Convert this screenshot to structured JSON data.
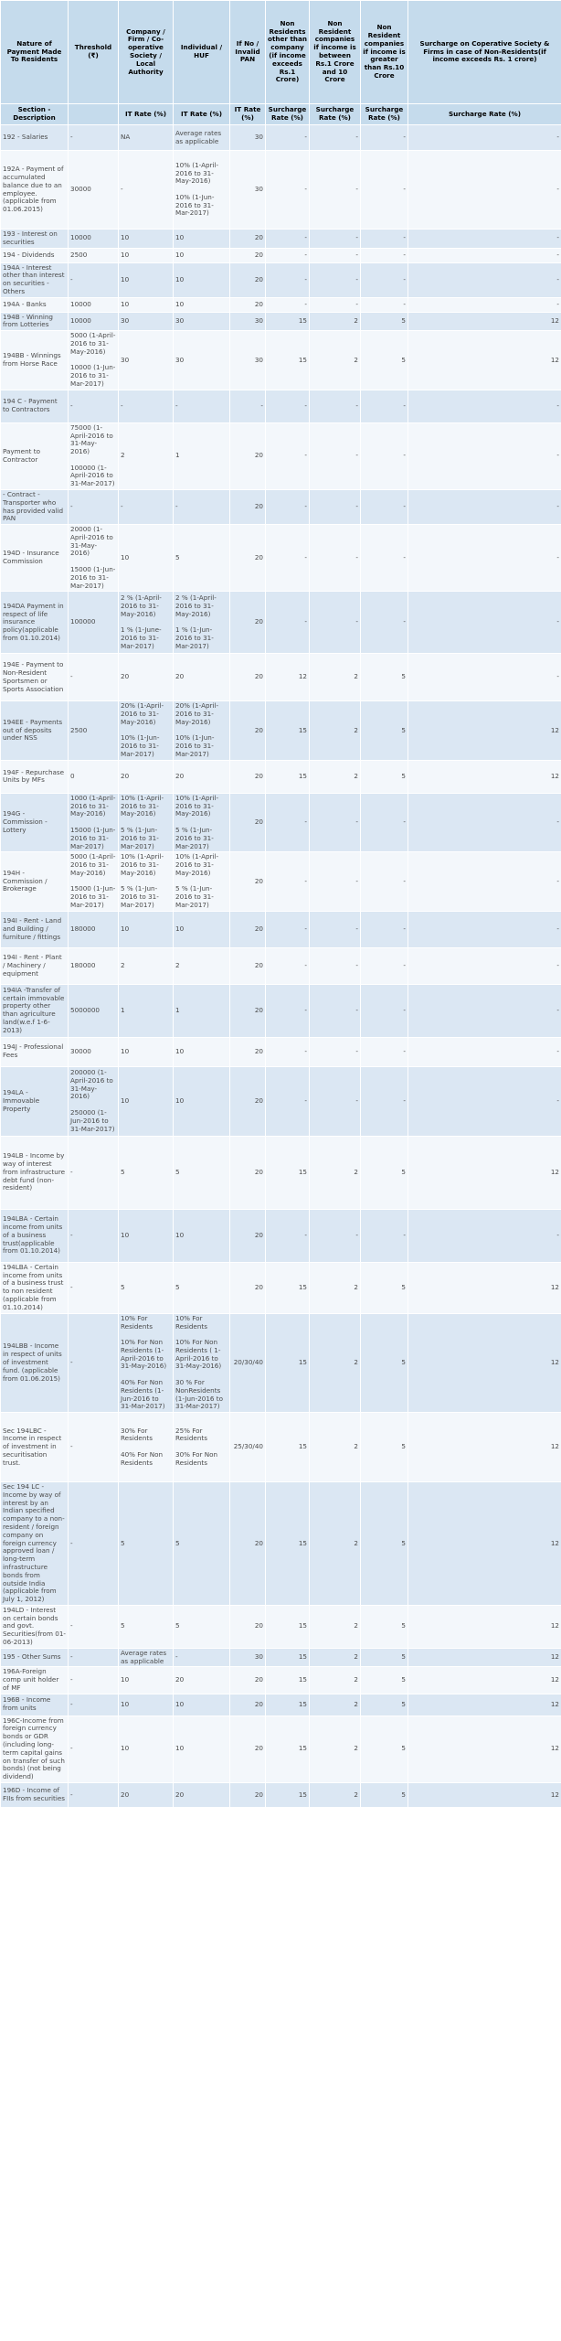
{
  "table": {
    "headers": [
      "Nature of Payment Made To Residents",
      "Threshold (₹)",
      "Company / Firm / Co-operative Society / Local Authority",
      "Individual / HUF",
      "If No / Invalid PAN",
      "Non Residents other than company (if income exceeds Rs.1 Crore)",
      "Non Resident companies if income is between Rs.1 Crore and 10 Crore",
      "Non Resident companies if income is greater than Rs.10 Crore",
      "Surcharge on Coperative Society & Firms in case of Non-Residents(if income exceeds Rs. 1 crore)"
    ],
    "subheaders": [
      "Section - Description",
      "",
      "IT Rate (%)",
      "IT Rate (%)",
      "IT Rate (%)",
      "Surcharge Rate (%)",
      "Surcharge Rate (%)",
      "Surcharge Rate (%)",
      "Surcharge Rate (%)"
    ],
    "rows": [
      [
        "192 - Salaries",
        "-",
        "NA",
        "Average rates as applicable",
        "30",
        "-",
        "-",
        "-",
        "-"
      ],
      [
        "192A - Payment of accumulated balance due to an employee. (applicable from 01.06.2015)",
        "30000",
        "-",
        "10% (1-April-2016 to 31-May-2016)\n\n10% (1-Jun-2016 to 31-Mar-2017)",
        "30",
        "-",
        "-",
        "-",
        "-"
      ],
      [
        "193 - Interest on securities",
        "10000",
        "10",
        "10",
        "20",
        "-",
        "-",
        "-",
        "-"
      ],
      [
        "194 - Dividends",
        "2500",
        "10",
        "10",
        "20",
        "-",
        "-",
        "-",
        "-"
      ],
      [
        "194A - Interest other than interest on securities - Others",
        "-",
        "10",
        "10",
        "20",
        "-",
        "-",
        "-",
        "-"
      ],
      [
        "194A - Banks",
        "10000",
        "10",
        "10",
        "20",
        "-",
        "-",
        "-",
        "-"
      ],
      [
        "194B - Winning from Lotteries",
        "10000",
        "30",
        "30",
        "30",
        "15",
        "2",
        "5",
        "12"
      ],
      [
        "194BB - Winnings from Horse Race",
        "5000 (1-April-2016 to 31-May-2016)\n\n10000 (1-Jun-2016 to 31-Mar-2017)",
        "30",
        "30",
        "30",
        "15",
        "2",
        "5",
        "12"
      ],
      [
        "194 C - Payment to Contractors",
        "-",
        "-",
        "-",
        "-",
        "-",
        "-",
        "-",
        "-"
      ],
      [
        "Payment to Contractor",
        "75000 (1-April-2016 to 31-May-2016)\n\n100000 (1-April-2016 to 31-Mar-2017)",
        "2",
        "1",
        "20",
        "-",
        "-",
        "-",
        "-"
      ],
      [
        "- Contract - Transporter who has provided valid PAN",
        "-",
        "-",
        "-",
        "20",
        "-",
        "-",
        "-",
        "-"
      ],
      [
        "194D - Insurance Commission",
        "20000 (1-April-2016 to 31-May-2016)\n\n15000 (1-Jun-2016 to 31-Mar-2017)",
        "10",
        "5",
        "20",
        "-",
        "-",
        "-",
        "-"
      ],
      [
        "194DA Payment in respect of life insurance policy(applicable from 01.10.2014)",
        "100000",
        "2 % (1-April-2016 to 31-May-2016)\n\n1 % (1-June-2016 to 31-Mar-2017)",
        "2 % (1-April-2016 to 31-May-2016)\n\n1 % (1-Jun-2016 to 31-Mar-2017)",
        "20",
        "-",
        "-",
        "-",
        "-"
      ],
      [
        "194E - Payment to Non-Resident Sportsmen or Sports Association",
        "-",
        "20",
        "20",
        "20",
        "12",
        "2",
        "5",
        "-"
      ],
      [
        "194EE - Payments out of deposits under NSS",
        "2500",
        "20% (1-April-2016 to 31-May-2016)\n\n10% (1-Jun-2016 to 31-Mar-2017)",
        "20% (1-April-2016 to 31-May-2016)\n\n10% (1-Jun-2016 to 31-Mar-2017)",
        "20",
        "15",
        "2",
        "5",
        "12"
      ],
      [
        "194F - Repurchase Units by MFs",
        "0",
        "20",
        "20",
        "20",
        "15",
        "2",
        "5",
        "12"
      ],
      [
        "194G - Commission - Lottery",
        "1000 (1-April-2016 to 31-May-2016)\n\n15000 (1-Jun-2016 to 31-Mar-2017)",
        "10% (1-April-2016 to 31-May-2016)\n\n5 % (1-Jun-2016 to 31-Mar-2017)",
        "10% (1-April-2016 to 31-May-2016)\n\n5 % (1-Jun-2016 to 31-Mar-2017)",
        "20",
        "-",
        "-",
        "-",
        "-"
      ],
      [
        "194H - Commission / Brokerage",
        "5000 (1-April-2016 to 31-May-2016)\n\n15000 (1-Jun-2016 to 31-Mar-2017)",
        "10% (1-April-2016 to 31-May-2016)\n\n5 % (1-Jun-2016 to 31-Mar-2017)",
        "10% (1-April-2016 to 31-May-2016)\n\n5 % (1-Jun-2016 to 31-Mar-2017)",
        "20",
        "-",
        "-",
        "-",
        "-"
      ],
      [
        "194I - Rent - Land and Building / furniture / fittings",
        "180000",
        "10",
        "10",
        "20",
        "-",
        "-",
        "-",
        "-"
      ],
      [
        "194I - Rent - Plant / Machinery / equipment",
        "180000",
        "2",
        "2",
        "20",
        "-",
        "-",
        "-",
        "-"
      ],
      [
        "194IA -Transfer of certain immovable property other than agriculture land(w.e.f 1-6-2013)",
        "5000000",
        "1",
        "1",
        "20",
        "-",
        "-",
        "-",
        "-"
      ],
      [
        "194J - Professional Fees",
        "30000",
        "10",
        "10",
        "20",
        "-",
        "-",
        "-",
        "-"
      ],
      [
        "194LA - Immovable Property",
        "200000 (1-April-2016 to 31-May-2016)\n\n250000 (1-Jun-2016 to 31-Mar-2017)",
        "10",
        "10",
        "20",
        "-",
        "-",
        "-",
        "-"
      ],
      [
        "194LB - Income by way of interest from infrastructure debt fund (non-resident)",
        "-",
        "5",
        "5",
        "20",
        "15",
        "2",
        "5",
        "12"
      ],
      [
        "194LBA - Certain income from units of a business trust(applicable from 01.10.2014)",
        "-",
        "10",
        "10",
        "20",
        "-",
        "-",
        "-",
        "-"
      ],
      [
        "194LBA - Certain income from units of a business trust to non resident (applicable from 01.10.2014)",
        "-",
        "5",
        "5",
        "20",
        "15",
        "2",
        "5",
        "12"
      ],
      [
        "194LBB - Income in respect of units of investment fund. (applicable from 01.06.2015)",
        "-",
        "10% For Residents\n\n10% For Non Residents (1-April-2016 to 31-May-2016)\n\n40% For Non Residents (1-Jun-2016 to 31-Mar-2017)",
        "10% For Residents\n\n10% For Non Residents ( 1-April-2016 to 31-May-2016)\n\n30 % For NonResidents (1-Jun-2016 to 31-Mar-2017)",
        "20/30/40",
        "15",
        "2",
        "5",
        "12"
      ],
      [
        "Sec 194LBC - Income in respect of investment in securitisation trust.",
        "-",
        "30% For Residents\n\n40% For Non Residents",
        "25% For Residents\n\n30% For Non Residents",
        "25/30/40",
        "15",
        "2",
        "5",
        "12"
      ],
      [
        "Sec 194 LC - Income by way of interest by an Indian specified company to a non-resident / foreign company on foreign currency approved loan / long-term infrastructure bonds from outside India (applicable from July 1, 2012)",
        "-",
        "5",
        "5",
        "20",
        "15",
        "2",
        "5",
        "12"
      ],
      [
        "194LD - Interest on certain bonds and govt. Securities(from 01-06-2013)",
        "-",
        "5",
        "5",
        "20",
        "15",
        "2",
        "5",
        "12"
      ],
      [
        "195 - Other Sums",
        "-",
        "Average rates as applicable",
        "-",
        "30",
        "15",
        "2",
        "5",
        "12"
      ],
      [
        "196A-Foreign comp unit holder of MF",
        "-",
        "10",
        "20",
        "20",
        "15",
        "2",
        "5",
        "12"
      ],
      [
        "196B - Income from units",
        "-",
        "10",
        "10",
        "20",
        "15",
        "2",
        "5",
        "12"
      ],
      [
        "196C-Income from foreign currency bonds or GDR (including long-term capital gains on transfer of such bonds) (not being dividend)",
        "-",
        "10",
        "10",
        "20",
        "15",
        "2",
        "5",
        "12"
      ],
      [
        "196D - Income of FIIs from securities",
        "-",
        "20",
        "20",
        "20",
        "15",
        "2",
        "5",
        "12"
      ]
    ]
  }
}
